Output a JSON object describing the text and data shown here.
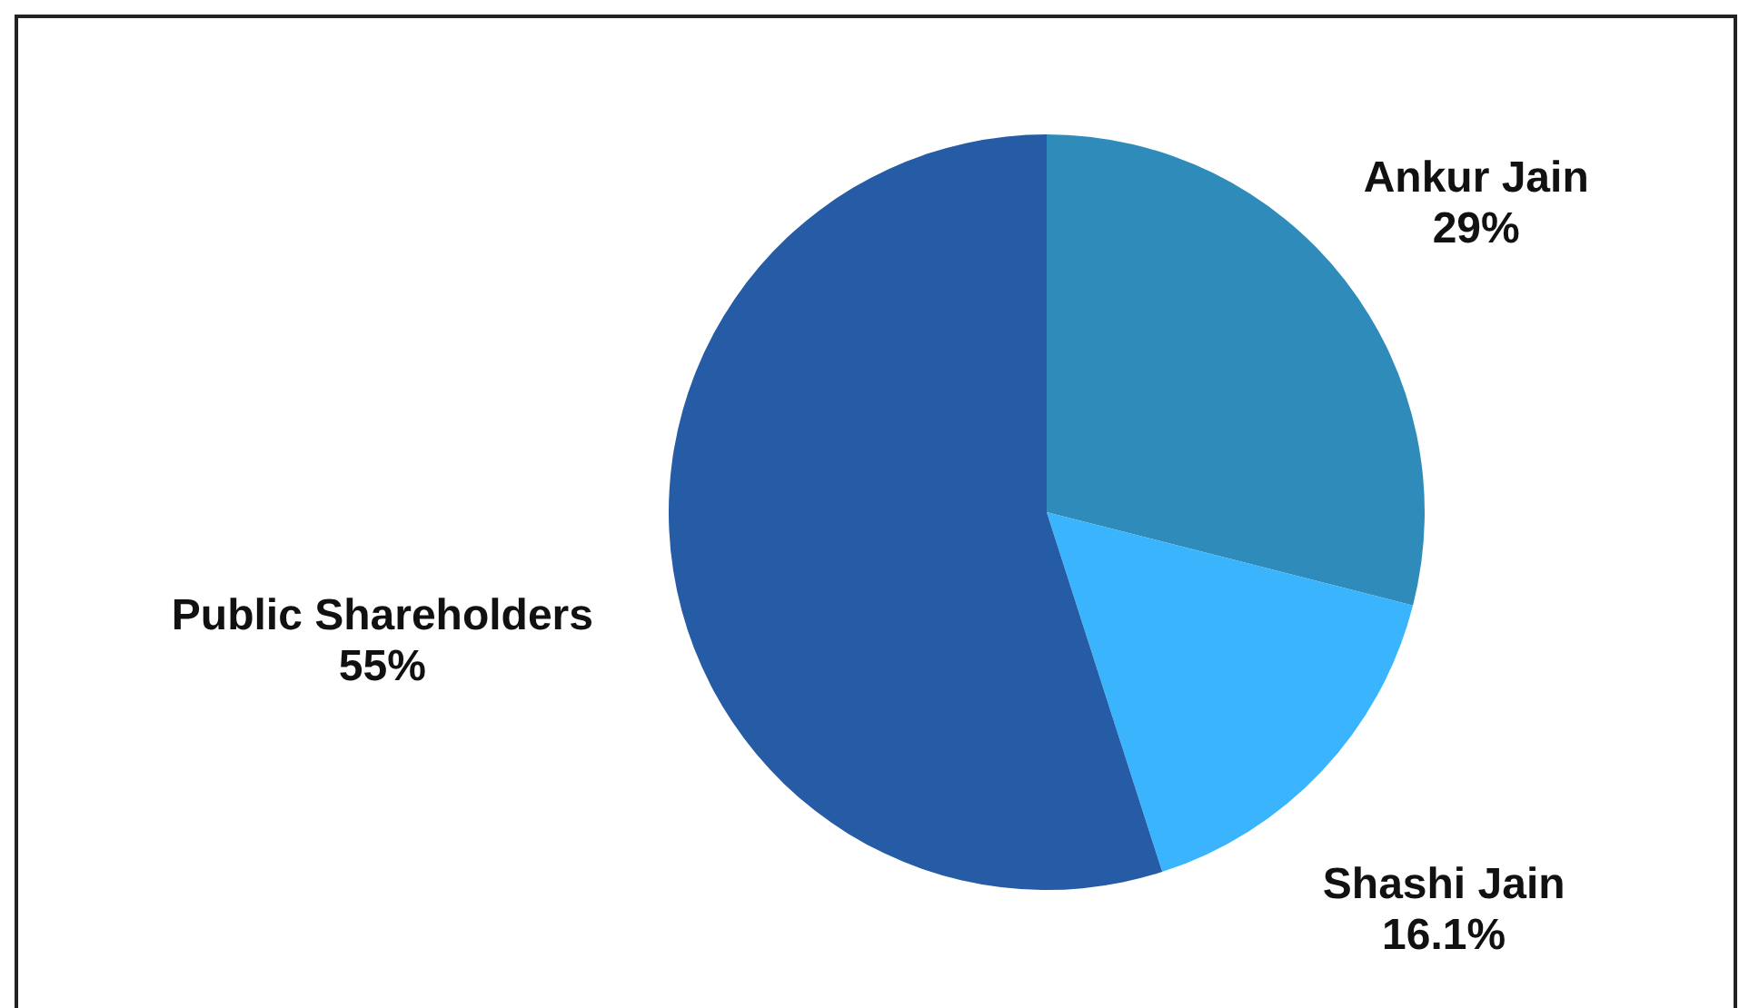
{
  "chart_data": {
    "type": "pie",
    "categories": [
      "Ankur Jain",
      "Shashi Jain",
      "Public Shareholders"
    ],
    "values": [
      29,
      16.1,
      55
    ],
    "colors": [
      "#2e8bba",
      "#3ab5fd",
      "#255ca5"
    ],
    "value_labels": [
      "29%",
      "16.1%",
      "55%"
    ]
  }
}
